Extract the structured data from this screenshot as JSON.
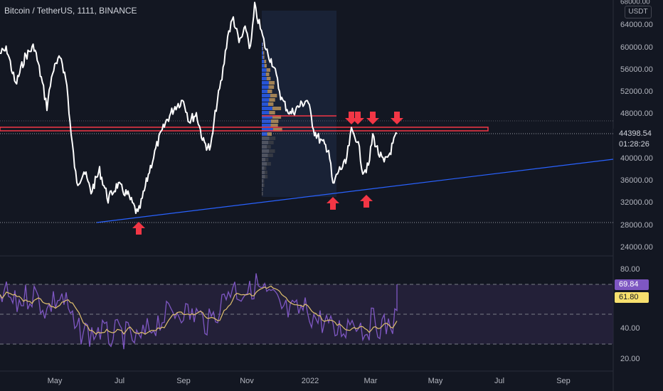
{
  "header": {
    "title": "Bitcoin / TetherUS, 1111, BINANCE",
    "currency": "USDT",
    "top_cut_label": "68000.00"
  },
  "colors": {
    "background": "#131722",
    "price_line": "#ffffff",
    "resistance": "#f23645",
    "trendline": "#2962ff",
    "arrow": "#f23645",
    "rsi_line": "#7e57c2",
    "rsi_ma": "#e0c16e",
    "rsi_band": "#2a2440"
  },
  "price_axis": {
    "ticks": [
      "64000.00",
      "60000.00",
      "56000.00",
      "52000.00",
      "48000.00",
      "40000.00",
      "36000.00",
      "32000.00",
      "28000.00",
      "24000.00"
    ],
    "last_price": "44398.54",
    "countdown": "01:28:26"
  },
  "rsi_axis": {
    "ticks": [
      "80.00",
      "40.00",
      "20.00"
    ],
    "rsi_value": "69.84",
    "ma_value": "61.80"
  },
  "time_axis": {
    "labels": [
      "May",
      "Jul",
      "Sep",
      "Nov",
      "2022",
      "Mar",
      "May",
      "Jul",
      "Sep"
    ]
  }
}
